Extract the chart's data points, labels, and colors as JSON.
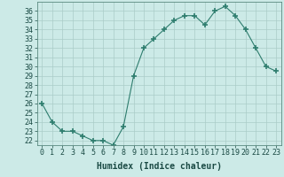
{
  "x": [
    0,
    1,
    2,
    3,
    4,
    5,
    6,
    7,
    8,
    9,
    10,
    11,
    12,
    13,
    14,
    15,
    16,
    17,
    18,
    19,
    20,
    21,
    22,
    23
  ],
  "y": [
    26,
    24,
    23,
    23,
    22.5,
    22,
    22,
    21.5,
    23.5,
    29,
    32,
    33,
    34,
    35,
    35.5,
    35.5,
    34.5,
    36,
    36.5,
    35.5,
    34,
    32,
    30,
    29.5
  ],
  "line_color": "#2e7d6e",
  "marker": "+",
  "marker_size": 4,
  "bg_color": "#cceae7",
  "grid_color": "#aaccc8",
  "xlabel": "Humidex (Indice chaleur)",
  "xlabel_fontsize": 7,
  "tick_fontsize": 6,
  "ylim": [
    21.5,
    37
  ],
  "xlim": [
    -0.5,
    23.5
  ],
  "yticks": [
    22,
    23,
    24,
    25,
    26,
    27,
    28,
    29,
    30,
    31,
    32,
    33,
    34,
    35,
    36
  ],
  "xticks": [
    0,
    1,
    2,
    3,
    4,
    5,
    6,
    7,
    8,
    9,
    10,
    11,
    12,
    13,
    14,
    15,
    16,
    17,
    18,
    19,
    20,
    21,
    22,
    23
  ],
  "xtick_labels": [
    "0",
    "1",
    "2",
    "3",
    "4",
    "5",
    "6",
    "7",
    "8",
    "9",
    "10",
    "11",
    "12",
    "13",
    "14",
    "15",
    "16",
    "17",
    "18",
    "19",
    "20",
    "21",
    "22",
    "23"
  ]
}
